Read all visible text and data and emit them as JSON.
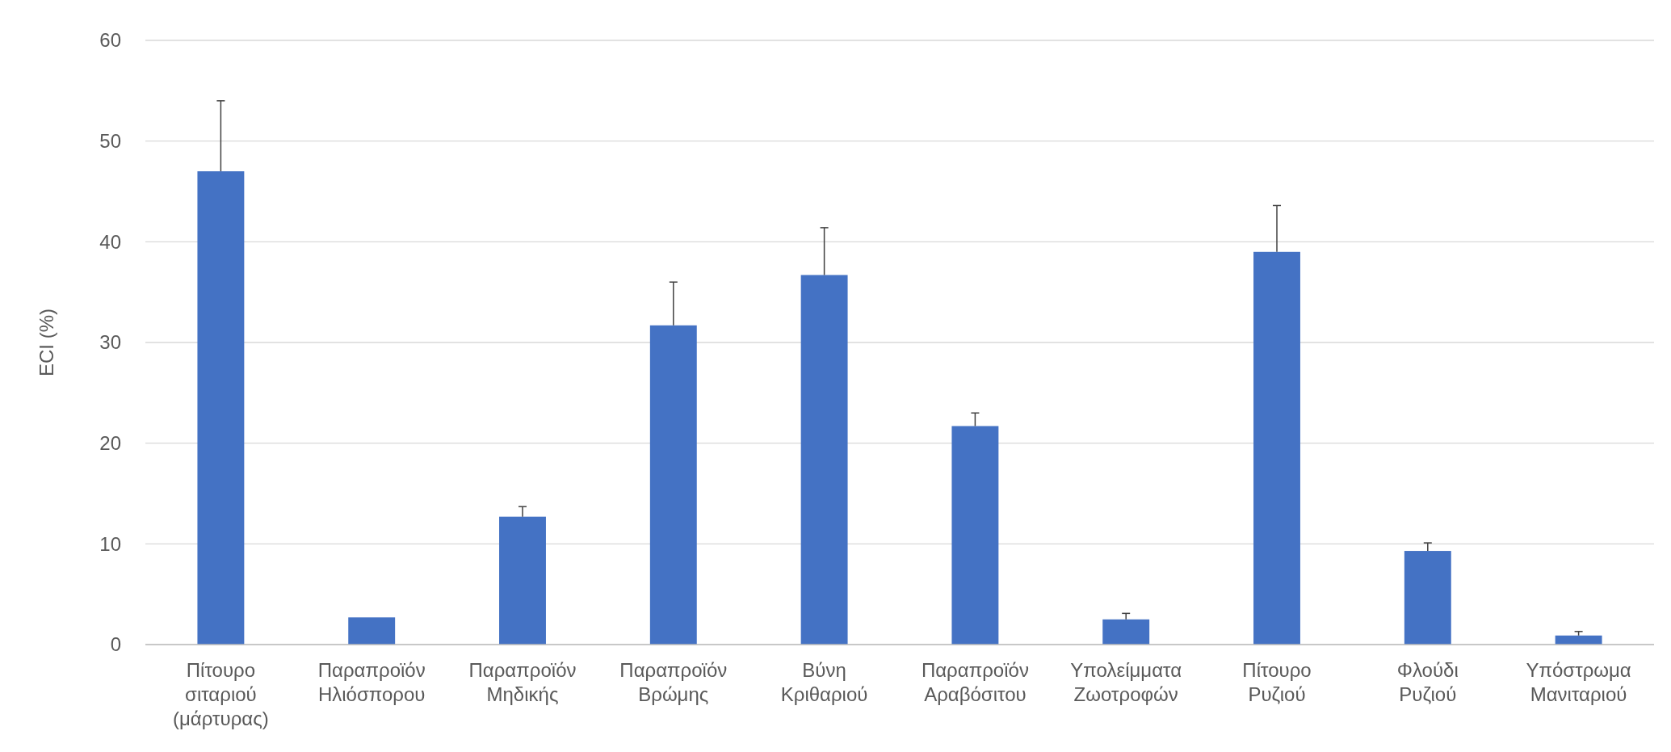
{
  "chart_data": {
    "type": "bar",
    "ylabel": "ECI (%)",
    "categories": [
      "Πίτουρο\nσιταριού\n(μάρτυρας)",
      "Παραπροϊόν\nΗλιόσπορου",
      "Παραπροϊόν\nΜηδικής",
      "Παραπροϊόν\nΒρώμης",
      "Βύνη\nΚριθαριού",
      "Παραπροϊόν\nΑραβόσιτου",
      "Υπολείμματα\nΖωοτροφών",
      "Πίτουρο\nΡυζιού",
      "Φλούδι\nΡυζιού",
      "Υπόστρωμα\nΜανιταριού"
    ],
    "values": [
      47,
      2.7,
      12.7,
      31.7,
      36.7,
      21.7,
      2.5,
      39,
      9.3,
      0.9
    ],
    "errors": [
      [
        47,
        54
      ],
      null,
      [
        12.7,
        13.7
      ],
      [
        31.7,
        36
      ],
      [
        36.7,
        41.4
      ],
      [
        21.7,
        23
      ],
      [
        2.5,
        3.1
      ],
      [
        39,
        43.6
      ],
      [
        9.3,
        10.1
      ],
      [
        0.9,
        1.3
      ]
    ],
    "color": "#4472c4",
    "ylim": [
      0,
      60
    ],
    "yticks": [
      0,
      10,
      20,
      30,
      40,
      50,
      60
    ],
    "grid": "y"
  }
}
